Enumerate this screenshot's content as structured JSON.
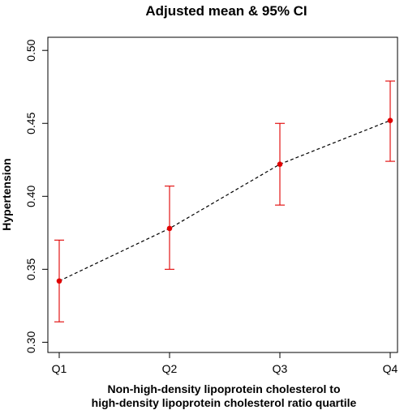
{
  "chart_data": {
    "type": "line",
    "title": "Adjusted mean & 95% CI",
    "xlabel_lines": [
      "Non-high-density lipoprotein cholesterol to",
      "high-density lipoprotein cholesterol ratio quartile"
    ],
    "ylabel": "Hypertension",
    "categories": [
      "Q1",
      "Q2",
      "Q3",
      "Q4"
    ],
    "series": [
      {
        "values": [
          0.342,
          0.378,
          0.422,
          0.452
        ],
        "ci_lower": [
          0.314,
          0.35,
          0.394,
          0.424
        ],
        "ci_upper": [
          0.37,
          0.407,
          0.45,
          0.479
        ],
        "point_color": "#e00000",
        "errorbar_color": "#e00000",
        "line_color": "#000000",
        "line_style": "dashed"
      }
    ],
    "ylim": [
      0.293,
      0.509
    ],
    "yticks": [
      0.3,
      0.35,
      0.4,
      0.45,
      0.5
    ],
    "ytick_labels": [
      "0.30",
      "0.35",
      "0.40",
      "0.45",
      "0.50"
    ],
    "grid": false
  }
}
